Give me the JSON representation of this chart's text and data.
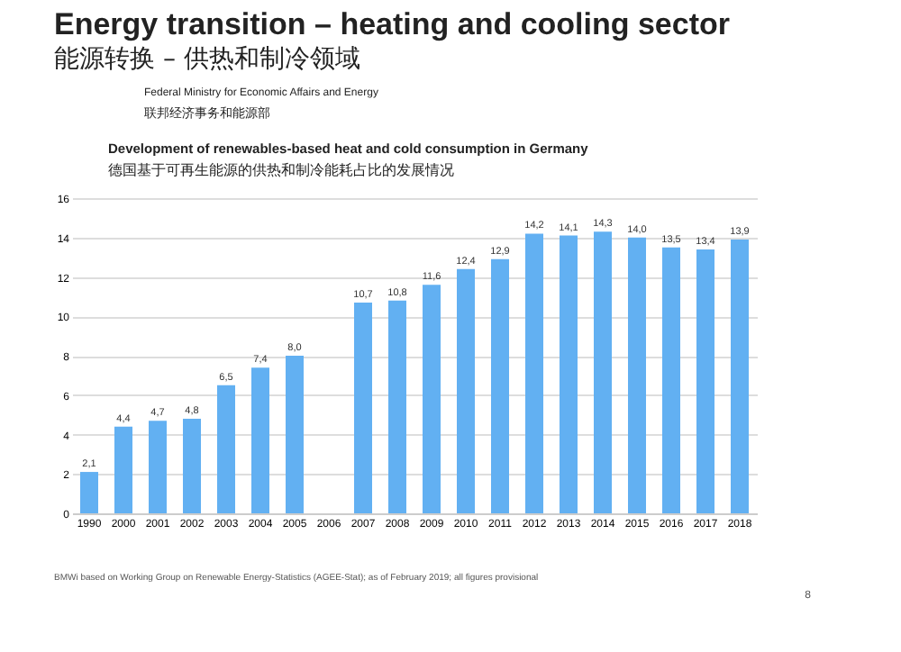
{
  "chart_data": {
    "type": "bar",
    "title": "Energy transition – heating and cooling sector",
    "subtitle": "能源转换 – 供热和制冷领域",
    "annotations": [
      "Federal Ministry for Economic Affairs and Energy",
      "联邦经济事务和能源部",
      "Development of renewables-based heat and cold consumption in Germany",
      "德国基于可再生能源的供热和制冷能耗占比的发展情况",
      "BMWi based on Working Group on Renewable Energy-Statistics (AGEE-Stat); as of February 2019; all figures provisional",
      "8"
    ],
    "categories": [
      "1990",
      "2000",
      "2001",
      "2002",
      "2003",
      "2004",
      "2005",
      "2006",
      "2007",
      "2008",
      "2009",
      "2010",
      "2011",
      "2012",
      "2013",
      "2014",
      "2015",
      "2016",
      "2017",
      "2018"
    ],
    "values": [
      2.1,
      4.4,
      4.7,
      4.8,
      6.5,
      7.4,
      8.0,
      null,
      10.7,
      10.8,
      11.6,
      12.4,
      12.9,
      14.2,
      14.1,
      14.3,
      14.0,
      13.5,
      13.4,
      13.9
    ],
    "value_labels": [
      "2,1",
      "4,4",
      "4,7",
      "4,8",
      "6,5",
      "7,4",
      "8,0",
      null,
      "10,7",
      "10,8",
      "11,6",
      "12,4",
      "12,9",
      "14,2",
      "14,1",
      "14,3",
      "14,0",
      "13,5",
      "13,4",
      "13,9"
    ],
    "color": "#62b0f2",
    "ylim": [
      0,
      16
    ],
    "yticks": [
      0,
      2,
      4,
      6,
      8,
      10,
      12,
      14,
      16
    ],
    "grid": "y"
  }
}
